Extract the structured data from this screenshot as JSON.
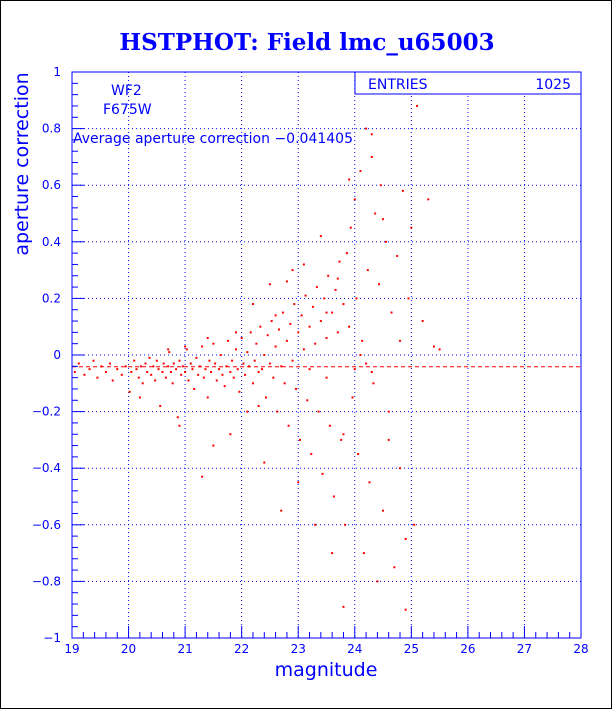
{
  "chart_data": {
    "type": "scatter",
    "title": "HSTPHOT: Field lmc_u65003",
    "xlabel": "magnitude",
    "ylabel": "aperture correction",
    "xlim": [
      19,
      28
    ],
    "ylim": [
      -1,
      1
    ],
    "x_ticks": [
      19,
      20,
      21,
      22,
      23,
      24,
      25,
      26,
      27,
      28
    ],
    "y_ticks": [
      -1,
      -0.8,
      -0.6,
      -0.4,
      -0.2,
      0,
      0.2,
      0.4,
      0.6,
      0.8,
      1
    ],
    "x_tick_labels": [
      "19",
      "20",
      "21",
      "22",
      "23",
      "24",
      "25",
      "26",
      "27",
      "28"
    ],
    "y_tick_labels": [
      "−1",
      "−0.8",
      "−0.6",
      "−0.4",
      "−0.2",
      "0",
      "0.2",
      "0.4",
      "0.6",
      "0.8",
      "1"
    ],
    "grid": true,
    "annotations": {
      "chip": "WF2",
      "filter": "F675W",
      "average_text": "Average aperture correction −0.041405",
      "average_value": -0.041405
    },
    "stats_box": {
      "label": "ENTRIES",
      "value": "1025"
    },
    "series": [
      {
        "points": [
          [
            19.05,
            -0.06
          ],
          [
            19.12,
            -0.03
          ],
          [
            19.22,
            -0.07
          ],
          [
            19.31,
            -0.05
          ],
          [
            19.38,
            -0.02
          ],
          [
            19.45,
            -0.08
          ],
          [
            19.52,
            -0.04
          ],
          [
            19.6,
            -0.06
          ],
          [
            19.67,
            -0.03
          ],
          [
            19.72,
            -0.09
          ],
          [
            19.8,
            -0.05
          ],
          [
            19.88,
            -0.07
          ],
          [
            19.95,
            -0.04
          ],
          [
            20.02,
            -0.13
          ],
          [
            20.05,
            -0.06
          ],
          [
            20.1,
            -0.02
          ],
          [
            20.14,
            -0.05
          ],
          [
            20.18,
            -0.08
          ],
          [
            20.22,
            -0.04
          ],
          [
            20.25,
            -0.1
          ],
          [
            20.3,
            -0.03
          ],
          [
            20.33,
            -0.06
          ],
          [
            20.37,
            -0.01
          ],
          [
            20.4,
            -0.07
          ],
          [
            20.44,
            -0.04
          ],
          [
            20.47,
            -0.09
          ],
          [
            20.5,
            -0.02
          ],
          [
            20.53,
            -0.05
          ],
          [
            20.56,
            -0.18
          ],
          [
            20.6,
            -0.06
          ],
          [
            20.62,
            -0.03
          ],
          [
            20.66,
            -0.08
          ],
          [
            20.7,
            -0.04
          ],
          [
            20.72,
            0.01
          ],
          [
            20.75,
            -0.06
          ],
          [
            20.78,
            -0.1
          ],
          [
            20.8,
            -0.03
          ],
          [
            20.84,
            -0.05
          ],
          [
            20.87,
            -0.22
          ],
          [
            20.9,
            -0.02
          ],
          [
            20.93,
            -0.07
          ],
          [
            20.96,
            -0.04
          ],
          [
            21.0,
            -0.06
          ],
          [
            21.03,
            0.02
          ],
          [
            21.06,
            -0.09
          ],
          [
            21.1,
            -0.03
          ],
          [
            21.13,
            -0.05
          ],
          [
            21.16,
            -0.12
          ],
          [
            21.2,
            -0.01
          ],
          [
            21.23,
            -0.07
          ],
          [
            21.26,
            -0.04
          ],
          [
            21.3,
            0.03
          ],
          [
            21.33,
            -0.08
          ],
          [
            21.36,
            -0.05
          ],
          [
            21.4,
            -0.15
          ],
          [
            21.43,
            -0.02
          ],
          [
            21.46,
            -0.06
          ],
          [
            21.5,
            0.04
          ],
          [
            21.53,
            -0.03
          ],
          [
            21.56,
            -0.09
          ],
          [
            21.6,
            -0.05
          ],
          [
            21.63,
            0.0
          ],
          [
            21.66,
            -0.07
          ],
          [
            21.7,
            -0.11
          ],
          [
            21.73,
            -0.04
          ],
          [
            21.76,
            0.05
          ],
          [
            21.8,
            -0.06
          ],
          [
            21.83,
            -0.02
          ],
          [
            21.86,
            -0.08
          ],
          [
            21.9,
            0.02
          ],
          [
            21.93,
            -0.05
          ],
          [
            21.96,
            -0.13
          ],
          [
            22.0,
            0.06
          ],
          [
            22.03,
            -0.03
          ],
          [
            22.06,
            -0.07
          ],
          [
            22.1,
            0.01
          ],
          [
            22.13,
            -0.04
          ],
          [
            22.16,
            0.08
          ],
          [
            22.2,
            -0.1
          ],
          [
            22.23,
            -0.02
          ],
          [
            22.26,
            0.04
          ],
          [
            22.3,
            -0.06
          ],
          [
            22.33,
            0.1
          ],
          [
            22.36,
            -0.05
          ],
          [
            22.4,
            0.0
          ],
          [
            22.43,
            -0.15
          ],
          [
            22.46,
            0.07
          ],
          [
            22.5,
            -0.03
          ],
          [
            22.53,
            0.12
          ],
          [
            22.56,
            -0.08
          ],
          [
            22.6,
            0.03
          ],
          [
            22.63,
            -0.2
          ],
          [
            22.66,
            0.09
          ],
          [
            22.7,
            -0.04
          ],
          [
            22.73,
            0.15
          ],
          [
            22.76,
            -0.1
          ],
          [
            22.8,
            0.05
          ],
          [
            22.83,
            -0.25
          ],
          [
            22.86,
            0.11
          ],
          [
            22.9,
            -0.02
          ],
          [
            22.93,
            0.18
          ],
          [
            22.96,
            -0.12
          ],
          [
            23.0,
            0.08
          ],
          [
            23.03,
            -0.3
          ],
          [
            23.06,
            0.14
          ],
          [
            23.1,
            0.02
          ],
          [
            23.13,
            0.21
          ],
          [
            23.16,
            -0.16
          ],
          [
            23.2,
            0.1
          ],
          [
            23.23,
            -0.35
          ],
          [
            23.26,
            0.17
          ],
          [
            23.3,
            0.04
          ],
          [
            23.33,
            0.24
          ],
          [
            23.36,
            -0.2
          ],
          [
            23.4,
            0.12
          ],
          [
            23.43,
            -0.42
          ],
          [
            23.46,
            0.2
          ],
          [
            23.5,
            0.06
          ],
          [
            23.53,
            0.28
          ],
          [
            23.56,
            -0.25
          ],
          [
            23.6,
            0.15
          ],
          [
            23.63,
            -0.5
          ],
          [
            23.66,
            0.23
          ],
          [
            23.7,
            0.08
          ],
          [
            23.73,
            0.33
          ],
          [
            23.76,
            -0.3
          ],
          [
            23.8,
            0.18
          ],
          [
            23.83,
            -0.6
          ],
          [
            23.86,
            0.36
          ],
          [
            23.9,
            0.1
          ],
          [
            23.93,
            0.45
          ],
          [
            23.96,
            -0.15
          ],
          [
            24.0,
            0.55
          ],
          [
            24.03,
            0.2
          ],
          [
            24.06,
            -0.35
          ],
          [
            24.1,
            0.65
          ],
          [
            24.13,
            0.05
          ],
          [
            24.16,
            -0.7
          ],
          [
            24.2,
            0.8
          ],
          [
            24.23,
            0.3
          ],
          [
            24.26,
            -0.45
          ],
          [
            24.3,
            0.7
          ],
          [
            24.33,
            -0.1
          ],
          [
            24.36,
            0.5
          ],
          [
            24.4,
            -0.8
          ],
          [
            24.43,
            0.25
          ],
          [
            24.46,
            0.6
          ],
          [
            24.5,
            -0.55
          ],
          [
            24.55,
            0.4
          ],
          [
            24.6,
            -0.2
          ],
          [
            24.65,
            0.15
          ],
          [
            24.7,
            -0.75
          ],
          [
            24.75,
            0.35
          ],
          [
            24.8,
            -0.4
          ],
          [
            24.85,
            0.58
          ],
          [
            24.9,
            -0.9
          ],
          [
            24.95,
            0.2
          ],
          [
            25.0,
            0.45
          ],
          [
            25.05,
            -0.6
          ],
          [
            25.1,
            0.88
          ],
          [
            25.2,
            0.12
          ],
          [
            25.3,
            0.55
          ],
          [
            25.4,
            0.03
          ],
          [
            20.2,
            -0.15
          ],
          [
            20.9,
            -0.25
          ],
          [
            21.3,
            -0.43
          ],
          [
            21.5,
            -0.32
          ],
          [
            21.8,
            -0.28
          ],
          [
            22.1,
            -0.2
          ],
          [
            22.4,
            -0.38
          ],
          [
            22.7,
            -0.55
          ],
          [
            23.0,
            -0.45
          ],
          [
            23.3,
            -0.6
          ],
          [
            23.6,
            -0.7
          ],
          [
            23.8,
            -0.89
          ],
          [
            24.0,
            -0.05
          ],
          [
            24.1,
            0.0
          ],
          [
            24.2,
            -0.03
          ],
          [
            24.3,
            -0.06
          ],
          [
            22.2,
            0.18
          ],
          [
            22.5,
            0.25
          ],
          [
            22.9,
            0.3
          ],
          [
            23.4,
            0.42
          ],
          [
            23.5,
            0.15
          ],
          [
            23.7,
            0.27
          ],
          [
            23.9,
            0.62
          ],
          [
            24.3,
            0.78
          ],
          [
            24.5,
            0.48
          ],
          [
            23.8,
            -0.28
          ],
          [
            22.3,
            -0.18
          ],
          [
            21.9,
            0.08
          ],
          [
            21.4,
            0.06
          ],
          [
            21.0,
            0.03
          ],
          [
            20.7,
            0.02
          ],
          [
            22.8,
            0.26
          ],
          [
            23.1,
            0.32
          ],
          [
            23.2,
            -0.05
          ],
          [
            23.5,
            -0.08
          ],
          [
            22.6,
            0.14
          ],
          [
            24.8,
            0.05
          ],
          [
            24.6,
            -0.3
          ],
          [
            25.5,
            0.02
          ],
          [
            24.9,
            -0.65
          ]
        ]
      }
    ],
    "reference_line": {
      "y": -0.041405
    },
    "colors": {
      "title": "#0000ff",
      "axes": "#0000ff",
      "grid": "#0000ff",
      "points": "#ff0000",
      "reference_line": "#ff0000"
    }
  }
}
